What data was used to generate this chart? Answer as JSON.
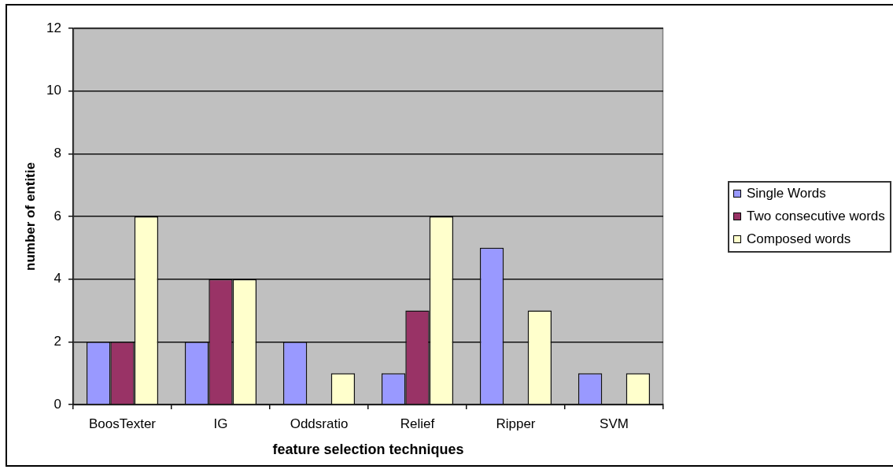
{
  "chart_data": {
    "type": "bar",
    "xlabel": "feature selection techniques",
    "ylabel": "number of entitie",
    "categories": [
      "BoosTexter",
      "IG",
      "Oddsratio",
      "Relief",
      "Ripper",
      "SVM"
    ],
    "series": [
      {
        "name": "Single Words",
        "color": "#9999ff",
        "values": [
          2,
          2,
          2,
          1,
          5,
          1
        ]
      },
      {
        "name": "Two consecutive words",
        "color": "#993366",
        "values": [
          2,
          4,
          0,
          3,
          0,
          0
        ]
      },
      {
        "name": "Composed words",
        "color": "#ffffcc",
        "values": [
          6,
          4,
          1,
          6,
          3,
          1
        ]
      }
    ],
    "ylim": [
      0,
      12
    ],
    "yticks": [
      0,
      2,
      4,
      6,
      8,
      10,
      12
    ],
    "grid": "y",
    "legend": "right"
  }
}
